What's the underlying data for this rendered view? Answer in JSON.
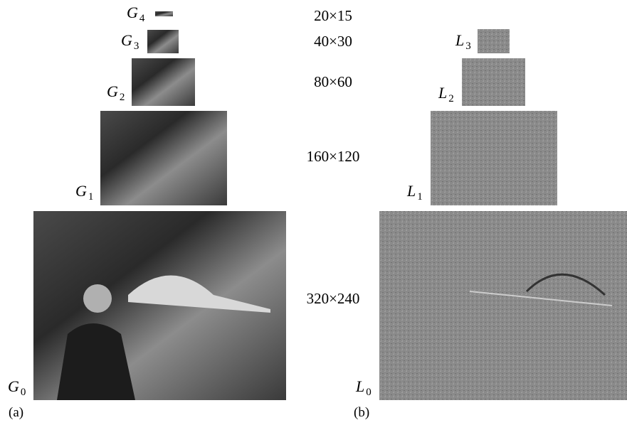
{
  "gaussian": [
    {
      "symbol": "G",
      "subscript": "4"
    },
    {
      "symbol": "G",
      "subscript": "3"
    },
    {
      "symbol": "G",
      "subscript": "2"
    },
    {
      "symbol": "G",
      "subscript": "1"
    },
    {
      "symbol": "G",
      "subscript": "0"
    }
  ],
  "sizes": [
    "20×15",
    "40×30",
    "80×60",
    "160×120",
    "320×240"
  ],
  "laplacian": [
    {
      "symbol": "L",
      "subscript": "3"
    },
    {
      "symbol": "L",
      "subscript": "2"
    },
    {
      "symbol": "L",
      "subscript": "1"
    },
    {
      "symbol": "L",
      "subscript": "0"
    }
  ],
  "panels": [
    "(a)",
    "(b)"
  ]
}
